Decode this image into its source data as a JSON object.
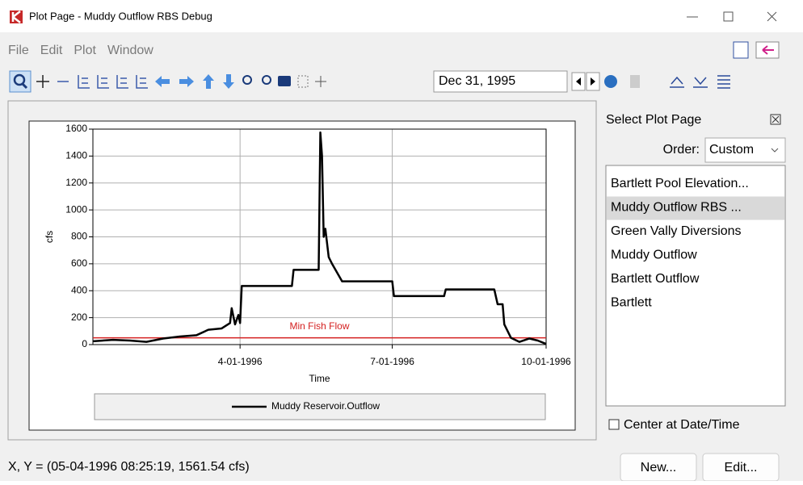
{
  "window": {
    "title": "Plot Page - Muddy Outflow RBS Debug"
  },
  "menu": [
    "File",
    "Edit",
    "Plot",
    "Window"
  ],
  "toolbar": {
    "date": "Dec 31, 1995"
  },
  "chart_data": {
    "type": "line",
    "ylabel": "cfs",
    "xlabel": "Time",
    "xlim": [
      "1-04-1996",
      "10-01-1996"
    ],
    "xticks": [
      "4-01-1996",
      "7-01-1996",
      "10-01-1996"
    ],
    "ylim": [
      0,
      1600
    ],
    "yticks": [
      0,
      200,
      400,
      600,
      800,
      1000,
      1200,
      1400,
      1600
    ],
    "grid": true,
    "series": [
      {
        "name": "Muddy Reservoir.Outflow",
        "color": "#000000",
        "x": [
          "1-04-1996",
          "1-16-1996",
          "1-26-1996",
          "2-05-1996",
          "2-15-1996",
          "2-25-1996",
          "3-06-1996",
          "3-13-1996",
          "3-21-1996",
          "3-26-1996",
          "3-27-1996",
          "3-29-1996",
          "3-31-1996",
          "4-01-1996",
          "4-02-1996",
          "5-02-1996",
          "5-03-1996",
          "5-18-1996",
          "5-19-1996",
          "5-20-1996",
          "5-21-1996",
          "5-22-1996",
          "5-24-1996",
          "5-26-1996",
          "6-01-1996",
          "7-01-1996",
          "7-02-1996",
          "8-01-1996",
          "8-02-1996",
          "8-31-1996",
          "9-02-1996",
          "9-05-1996",
          "9-06-1996",
          "9-10-1996",
          "9-15-1996",
          "9-21-1996",
          "9-26-1996",
          "10-01-1996"
        ],
        "values": [
          25,
          35,
          30,
          20,
          45,
          60,
          70,
          110,
          120,
          160,
          270,
          150,
          220,
          160,
          435,
          435,
          555,
          555,
          1575,
          1400,
          800,
          860,
          650,
          600,
          470,
          470,
          360,
          360,
          410,
          410,
          300,
          300,
          150,
          50,
          20,
          45,
          30,
          5
        ]
      }
    ],
    "annotations": [
      {
        "text": "Min Fish Flow",
        "y": 50,
        "color": "#d42020"
      }
    ]
  },
  "side_panel": {
    "title": "Select Plot Page",
    "order_label": "Order:",
    "order_value": "Custom",
    "items": [
      "Bartlett Pool Elevation...",
      "Muddy Outflow RBS ...",
      "Green Vally Diversions",
      "Muddy Outflow",
      "Bartlett Outflow",
      "Bartlett"
    ],
    "selected": 1,
    "checkbox": "Center at Date/Time"
  },
  "status": "X, Y = (05-04-1996 08:25:19, 1561.54 cfs)",
  "buttons": [
    "New...",
    "Edit..."
  ]
}
